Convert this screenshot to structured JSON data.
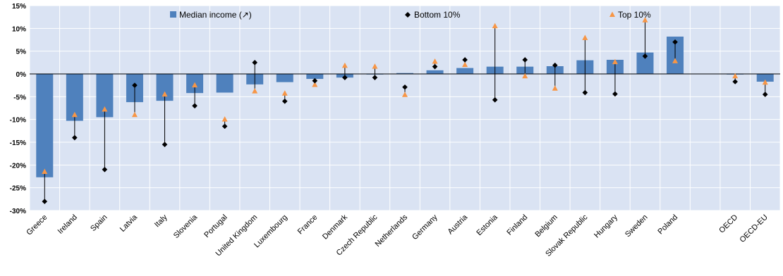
{
  "chart_data": {
    "type": "bar",
    "categories": [
      "Greece",
      "Ireland",
      "Spain",
      "Latvia",
      "Italy",
      "Slovenia",
      "Portugal",
      "United Kingdom",
      "Luxembourg",
      "France",
      "Denmark",
      "Czech Republic",
      "Netherlands",
      "Germany",
      "Austria",
      "Estonia",
      "Finland",
      "Belgium",
      "Slovak Republic",
      "Hungary",
      "Sweden",
      "Poland",
      "",
      "OECD",
      "OECD-EU"
    ],
    "series": [
      {
        "name": "Median income (↗)",
        "kind": "bar",
        "color": "#4f81bd",
        "values": [
          -22.7,
          -10.3,
          -9.5,
          -6.2,
          -5.9,
          -4.2,
          -4.1,
          -2.3,
          -1.8,
          -1.1,
          -0.8,
          -0.1,
          0.2,
          0.8,
          1.3,
          1.6,
          1.6,
          1.7,
          3.0,
          3.1,
          4.7,
          8.2,
          null,
          -0.1,
          -1.7
        ]
      },
      {
        "name": "Bottom 10%",
        "kind": "marker",
        "marker": "diamond",
        "color": "#000000",
        "values": [
          -28.0,
          -14.0,
          -21.0,
          -2.5,
          -15.5,
          -7.0,
          -11.5,
          2.5,
          -6.0,
          -1.5,
          -0.8,
          -0.8,
          -2.9,
          1.6,
          3.1,
          -5.7,
          3.1,
          1.9,
          -4.1,
          -4.4,
          3.9,
          7.0,
          null,
          -1.7,
          -4.5
        ]
      },
      {
        "name": "Top 10%",
        "kind": "marker",
        "marker": "triangle",
        "color": "#f79646",
        "values": [
          -21.5,
          -9.0,
          -7.8,
          -9.0,
          -4.5,
          -2.5,
          -10.0,
          -3.8,
          -4.3,
          -2.4,
          1.8,
          1.6,
          -4.6,
          2.7,
          2.0,
          10.5,
          -0.5,
          -3.2,
          7.9,
          2.6,
          11.8,
          2.8,
          null,
          -0.5,
          -1.9
        ]
      }
    ],
    "ylim": [
      -30,
      15
    ],
    "yticks": [
      15,
      10,
      5,
      0,
      -5,
      -10,
      -15,
      -20,
      -25,
      -30
    ],
    "ytick_labels": [
      "15%",
      "10%",
      "5%",
      "0%",
      "-5%",
      "-10%",
      "-15%",
      "-20%",
      "-25%",
      "-30%"
    ],
    "grid": true,
    "legend_position": "top-center",
    "plot_background": "#dae3f3",
    "connector_color": "#000000"
  }
}
